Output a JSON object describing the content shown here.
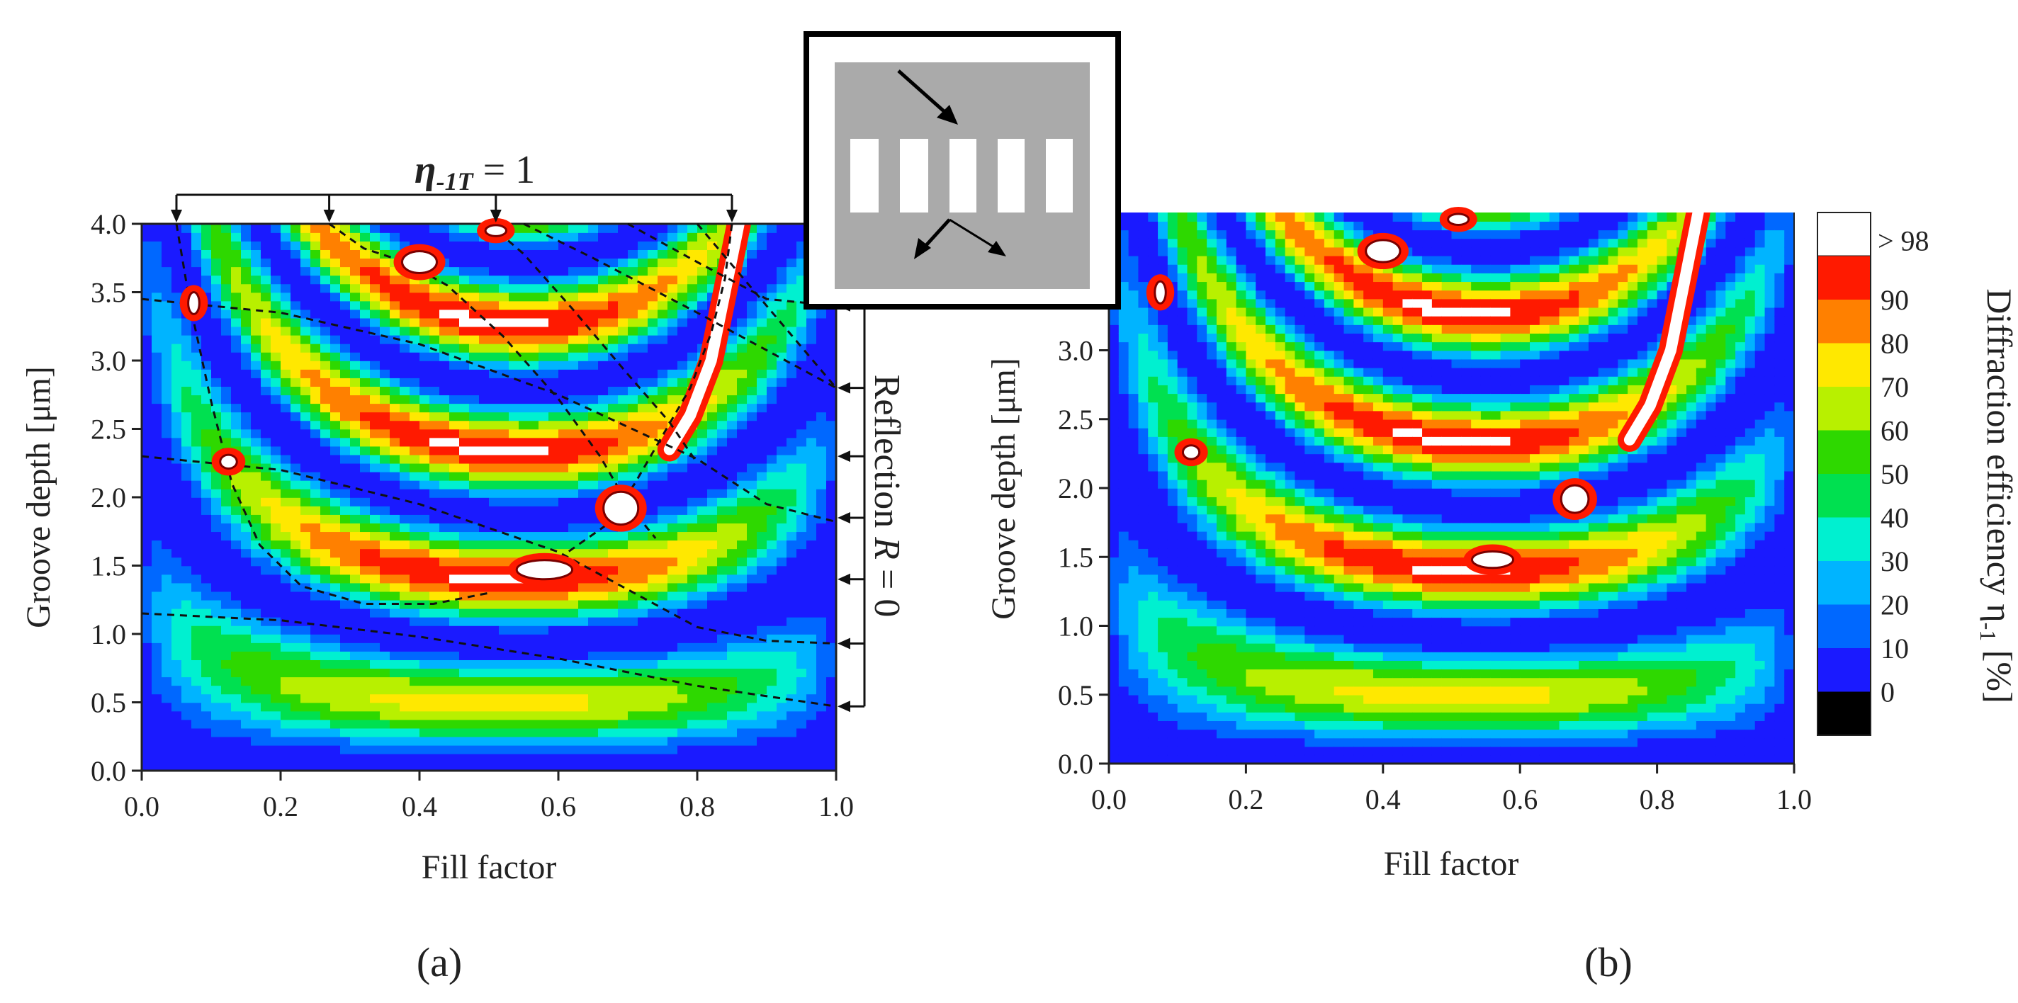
{
  "chart_data": [
    {
      "type": "heatmap",
      "panel_label": "(a)",
      "xlabel": "Fill factor",
      "ylabel": "Groove depth [μm]",
      "xlim": [
        0.0,
        1.0
      ],
      "ylim": [
        0.0,
        4.0
      ],
      "xticks": [
        "0.0",
        "0.2",
        "0.4",
        "0.6",
        "0.8",
        "1.0"
      ],
      "yticks": [
        "0.0",
        "0.5",
        "1.0",
        "1.5",
        "2.0",
        "2.5",
        "3.0",
        "3.5",
        "4.0"
      ],
      "top_annotation": {
        "symbol": "η",
        "subscript": "-1T",
        "rest": " = 1"
      },
      "top_arrow_fill_factors": [
        0.05,
        0.27,
        0.51,
        0.85
      ],
      "right_annotation": {
        "prefix": "Reflection ",
        "symbol": "R",
        "rest": " = 0"
      },
      "right_arrow_depths": [
        3.4,
        2.8,
        2.3,
        1.85,
        1.4,
        0.93,
        0.47
      ],
      "eta_one_curves": [
        [
          [
            0.05,
            4.0
          ],
          [
            0.07,
            3.4
          ],
          [
            0.1,
            2.7
          ],
          [
            0.13,
            2.1
          ],
          [
            0.17,
            1.65
          ],
          [
            0.23,
            1.35
          ],
          [
            0.32,
            1.22
          ],
          [
            0.42,
            1.22
          ],
          [
            0.5,
            1.3
          ]
        ],
        [
          [
            0.27,
            4.0
          ],
          [
            0.32,
            3.82
          ],
          [
            0.38,
            3.72
          ],
          [
            0.44,
            3.55
          ],
          [
            0.52,
            3.18
          ],
          [
            0.6,
            2.72
          ],
          [
            0.66,
            2.3
          ],
          [
            0.7,
            1.95
          ],
          [
            0.74,
            1.7
          ]
        ],
        [
          [
            0.5,
            4.0
          ],
          [
            0.55,
            3.78
          ],
          [
            0.62,
            3.38
          ],
          [
            0.7,
            2.9
          ],
          [
            0.76,
            2.55
          ],
          [
            0.8,
            2.25
          ]
        ],
        [
          [
            0.85,
            4.0
          ],
          [
            0.84,
            3.6
          ],
          [
            0.82,
            3.2
          ],
          [
            0.79,
            2.8
          ],
          [
            0.75,
            2.45
          ],
          [
            0.71,
            2.1
          ],
          [
            0.67,
            1.8
          ],
          [
            0.6,
            1.55
          ],
          [
            0.55,
            1.42
          ]
        ]
      ],
      "reflection_zero_curves": [
        [
          [
            0.0,
            3.45
          ],
          [
            0.2,
            3.35
          ],
          [
            0.4,
            3.12
          ],
          [
            0.6,
            2.75
          ],
          [
            0.8,
            2.28
          ],
          [
            0.9,
            1.95
          ],
          [
            1.0,
            1.82
          ]
        ],
        [
          [
            0.0,
            2.3
          ],
          [
            0.2,
            2.2
          ],
          [
            0.4,
            1.95
          ],
          [
            0.6,
            1.6
          ],
          [
            0.8,
            1.05
          ],
          [
            0.9,
            0.95
          ],
          [
            1.0,
            0.93
          ]
        ],
        [
          [
            0.0,
            1.15
          ],
          [
            0.2,
            1.1
          ],
          [
            0.4,
            0.98
          ],
          [
            0.6,
            0.82
          ],
          [
            0.8,
            0.62
          ],
          [
            1.0,
            0.47
          ]
        ],
        [
          [
            0.7,
            4.0
          ],
          [
            0.8,
            3.72
          ],
          [
            0.9,
            3.45
          ],
          [
            1.0,
            3.4
          ]
        ],
        [
          [
            0.8,
            4.0
          ],
          [
            0.9,
            3.4
          ],
          [
            1.0,
            2.8
          ]
        ],
        [
          [
            0.55,
            4.0
          ],
          [
            0.65,
            3.75
          ],
          [
            0.8,
            3.35
          ],
          [
            1.0,
            2.8
          ]
        ]
      ],
      "high_efficiency_islands": [
        {
          "x": 0.075,
          "y": 3.42,
          "rx": 0.008,
          "ry": 0.08
        },
        {
          "x": 0.125,
          "y": 2.26,
          "rx": 0.012,
          "ry": 0.05
        },
        {
          "x": 0.4,
          "y": 3.72,
          "rx": 0.025,
          "ry": 0.08
        },
        {
          "x": 0.51,
          "y": 3.95,
          "rx": 0.015,
          "ry": 0.04
        },
        {
          "x": 0.58,
          "y": 1.47,
          "rx": 0.04,
          "ry": 0.07
        },
        {
          "x": 0.69,
          "y": 1.92,
          "rx": 0.025,
          "ry": 0.12
        }
      ]
    },
    {
      "type": "heatmap",
      "panel_label": "(b)",
      "xlabel": "Fill factor",
      "ylabel": "Groove depth [μm]",
      "xlim": [
        0.0,
        1.0
      ],
      "ylim": [
        0.0,
        4.0
      ],
      "xticks": [
        "0.0",
        "0.2",
        "0.4",
        "0.6",
        "0.8",
        "1.0"
      ],
      "yticks": [
        "0.0",
        "0.5",
        "1.0",
        "1.5",
        "2.0",
        "2.5",
        "3.0"
      ],
      "high_efficiency_islands": [
        {
          "x": 0.075,
          "y": 3.42,
          "rx": 0.008,
          "ry": 0.08
        },
        {
          "x": 0.12,
          "y": 2.26,
          "rx": 0.012,
          "ry": 0.05
        },
        {
          "x": 0.4,
          "y": 3.72,
          "rx": 0.025,
          "ry": 0.08
        },
        {
          "x": 0.51,
          "y": 3.95,
          "rx": 0.015,
          "ry": 0.04
        },
        {
          "x": 0.56,
          "y": 1.48,
          "rx": 0.03,
          "ry": 0.06
        },
        {
          "x": 0.68,
          "y": 1.92,
          "rx": 0.02,
          "ry": 0.1
        }
      ],
      "colorbar": {
        "title": "Diffraction efficiency η",
        "title_subscript": "-1",
        "title_suffix": " [%]",
        "top_label": "> 98",
        "levels": [
          {
            "label": "90",
            "color": "#ff1a00"
          },
          {
            "label": "80",
            "color": "#ff8000"
          },
          {
            "label": "70",
            "color": "#ffe800"
          },
          {
            "label": "60",
            "color": "#b8f000"
          },
          {
            "label": "50",
            "color": "#2ed800"
          },
          {
            "label": "40",
            "color": "#00e050"
          },
          {
            "label": "30",
            "color": "#00f0d0"
          },
          {
            "label": "20",
            "color": "#00b4ff"
          },
          {
            "label": "10",
            "color": "#0068ff"
          },
          {
            "label": "0",
            "color": "#1a1aff"
          }
        ],
        "bottom_color": "#000000",
        "top_color": "#ffffff"
      }
    }
  ]
}
